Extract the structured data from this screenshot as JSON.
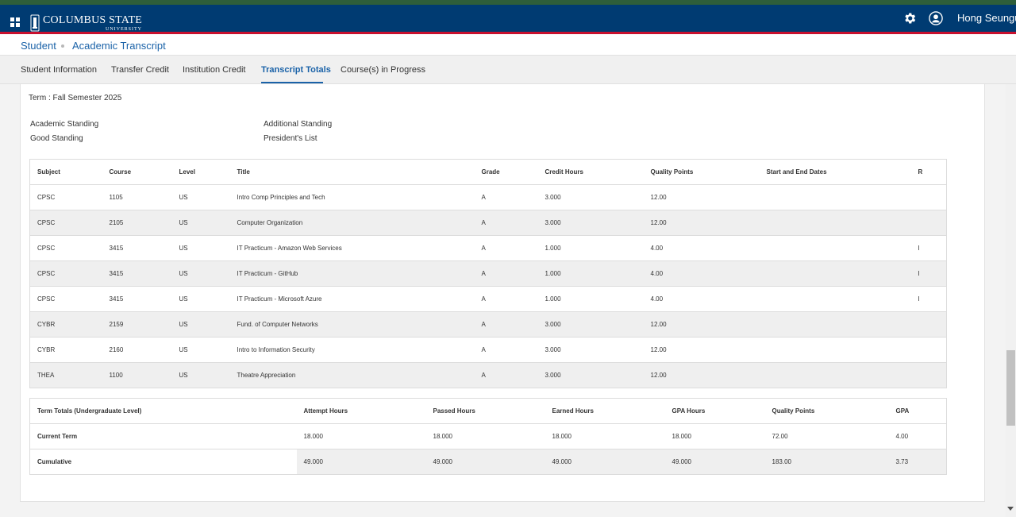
{
  "header": {
    "logo_main": "COLUMBUS STATE",
    "logo_sub": "UNIVERSITY",
    "user_name": "Hong Seungu",
    "colors": {
      "primary": "#003b72",
      "accent_red": "#c8102e",
      "top_stripe": "#2e5e3a",
      "link": "#1a62a8"
    }
  },
  "breadcrumb": {
    "items": [
      "Student",
      "Academic Transcript"
    ]
  },
  "tabs": [
    {
      "label": "Student Information"
    },
    {
      "label": "Transfer Credit"
    },
    {
      "label": "Institution Credit"
    },
    {
      "label": "Transcript Totals",
      "active": true
    },
    {
      "label": "Course(s) in Progress"
    }
  ],
  "term": {
    "label": "Term : Fall Semester 2025"
  },
  "standing": {
    "academic_label": "Academic Standing",
    "academic_value": "Good Standing",
    "additional_label": "Additional Standing",
    "additional_value": "President's List"
  },
  "courses": {
    "headers": [
      "Subject",
      "Course",
      "Level",
      "Title",
      "Grade",
      "Credit Hours",
      "Quality Points",
      "Start and End Dates",
      "R"
    ],
    "rows": [
      [
        "CPSC",
        "1105",
        "US",
        "Intro Comp Principles and Tech",
        "A",
        "3.000",
        "12.00",
        "",
        ""
      ],
      [
        "CPSC",
        "2105",
        "US",
        "Computer Organization",
        "A",
        "3.000",
        "12.00",
        "",
        ""
      ],
      [
        "CPSC",
        "3415",
        "US",
        "IT Practicum - Amazon Web Services",
        "A",
        "1.000",
        "4.00",
        "",
        "I"
      ],
      [
        "CPSC",
        "3415",
        "US",
        "IT Practicum - GitHub",
        "A",
        "1.000",
        "4.00",
        "",
        "I"
      ],
      [
        "CPSC",
        "3415",
        "US",
        "IT Practicum - Microsoft Azure",
        "A",
        "1.000",
        "4.00",
        "",
        "I"
      ],
      [
        "CYBR",
        "2159",
        "US",
        "Fund. of Computer Networks",
        "A",
        "3.000",
        "12.00",
        "",
        ""
      ],
      [
        "CYBR",
        "2160",
        "US",
        "Intro to Information Security",
        "A",
        "3.000",
        "12.00",
        "",
        ""
      ],
      [
        "THEA",
        "1100",
        "US",
        "Theatre Appreciation",
        "A",
        "3.000",
        "12.00",
        "",
        ""
      ]
    ]
  },
  "totals": {
    "headers": [
      "Term Totals (Undergraduate Level)",
      "Attempt Hours",
      "Passed Hours",
      "Earned Hours",
      "GPA Hours",
      "Quality Points",
      "GPA"
    ],
    "rows": [
      [
        "Current Term",
        "18.000",
        "18.000",
        "18.000",
        "18.000",
        "72.00",
        "4.00"
      ],
      [
        "Cumulative",
        "49.000",
        "49.000",
        "49.000",
        "49.000",
        "183.00",
        "3.73"
      ]
    ]
  }
}
